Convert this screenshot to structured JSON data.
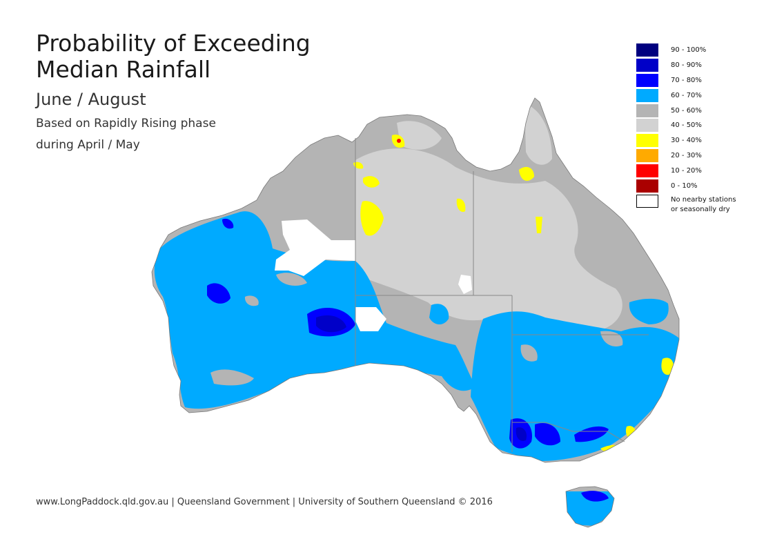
{
  "title": {
    "line1": "Probability of Exceeding",
    "line2": "Median Rainfall"
  },
  "subtitle": "June / August",
  "basis": {
    "line1": "Based on Rapidly Rising phase",
    "line2": "during April / May"
  },
  "legend": {
    "items": [
      {
        "label": "90 - 100%",
        "color": "#00007f"
      },
      {
        "label": "80 - 90%",
        "color": "#0000c8"
      },
      {
        "label": "70 - 80%",
        "color": "#0000ff"
      },
      {
        "label": "60 - 70%",
        "color": "#00aaff"
      },
      {
        "label": "50 - 60%",
        "color": "#b4b4b4"
      },
      {
        "label": "40 - 50%",
        "color": "#d2d2d2"
      },
      {
        "label": "30 - 40%",
        "color": "#ffff00"
      },
      {
        "label": "20 - 30%",
        "color": "#ffaa00"
      },
      {
        "label": "10 - 20%",
        "color": "#ff0000"
      },
      {
        "label": "0 - 10%",
        "color": "#aa0000"
      }
    ],
    "nodata": {
      "line1": "No nearby stations",
      "line2": "or seasonally dry",
      "color": "#ffffff"
    }
  },
  "footer": "www.LongPaddock.qld.gov.au | Queensland Government | University of Southern Queensland © 2016"
}
